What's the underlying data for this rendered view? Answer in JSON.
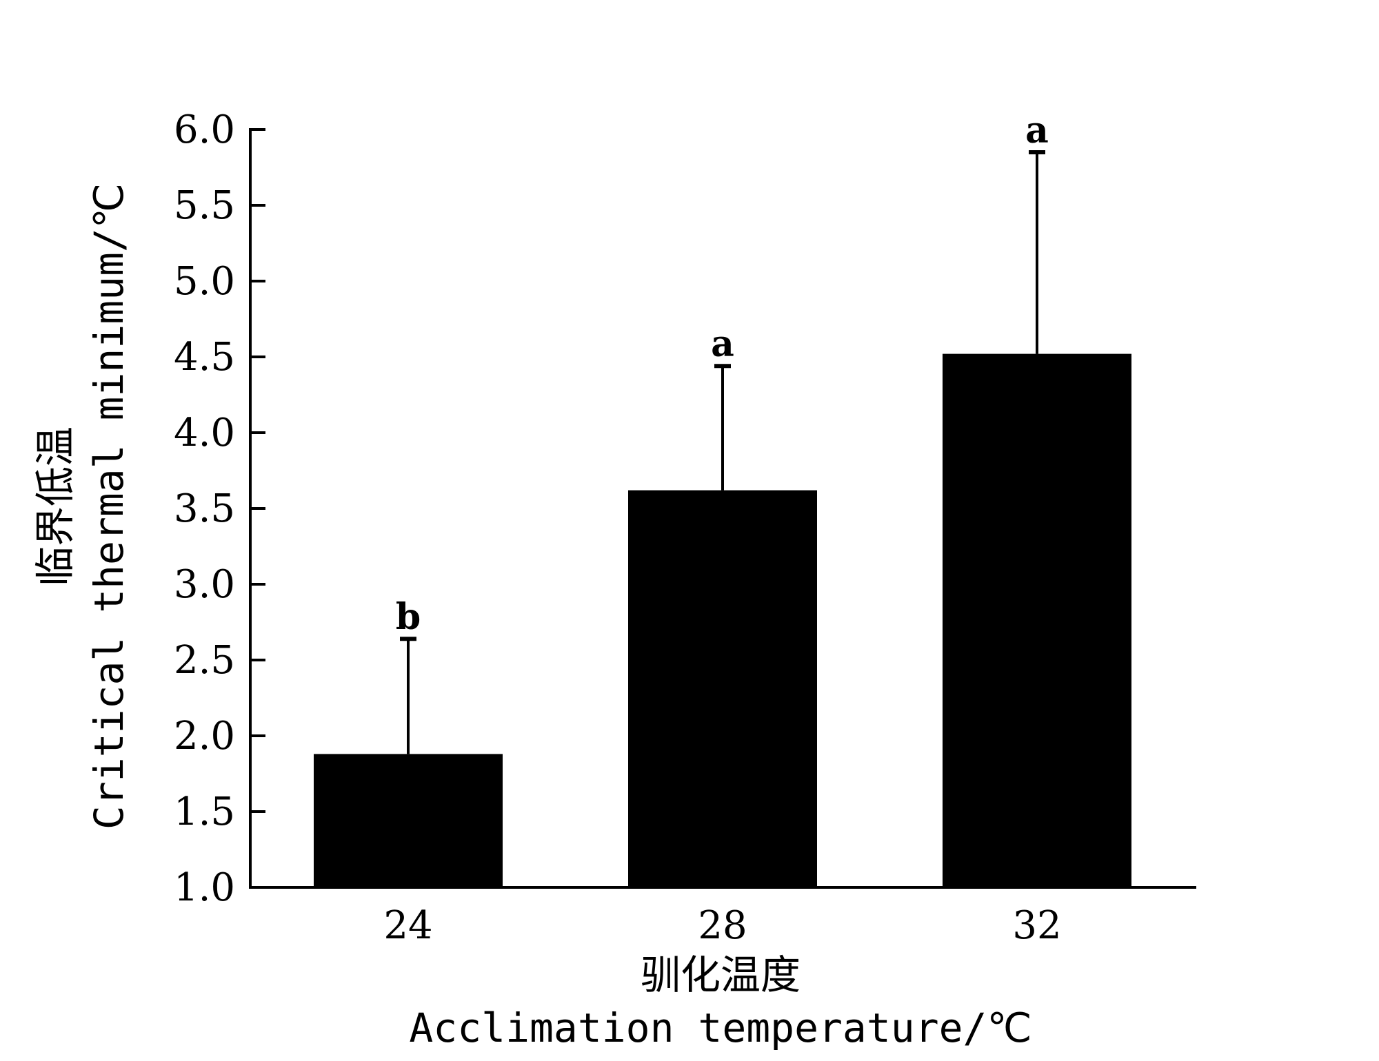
{
  "chart_data": {
    "type": "bar",
    "categories": [
      "24",
      "28",
      "32"
    ],
    "values": [
      1.88,
      3.62,
      4.52
    ],
    "error_upper": [
      2.64,
      4.44,
      5.85
    ],
    "significance_labels": [
      "b",
      "a",
      "a"
    ],
    "xlabel_cn": "驯化温度",
    "xlabel_en": "Acclimation temperature/℃",
    "ylabel_cn": "临界低温",
    "ylabel_en": "Critical thermal minimum/℃",
    "yticks": [
      "1.0",
      "1.5",
      "2.0",
      "2.5",
      "3.0",
      "3.5",
      "4.0",
      "4.5",
      "5.0",
      "5.5",
      "6.0"
    ],
    "ylim": [
      1.0,
      6.0
    ],
    "grid": false,
    "bar_color": "#000000"
  }
}
